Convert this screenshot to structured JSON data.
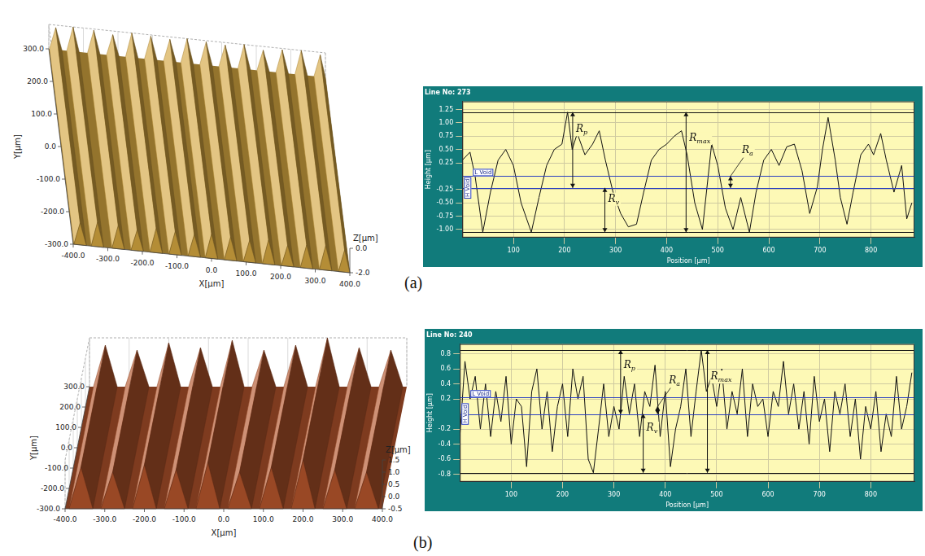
{
  "panel_labels": [
    "(a)",
    "(b)"
  ],
  "chart_data": [
    {
      "type": "surface",
      "color": "#d4a640",
      "x_label": "X[µm]",
      "y_label": "Y[µm]",
      "z_label": "Z[µm]",
      "xlim": [
        -400,
        400
      ],
      "xticks": [
        {
          "value": -400,
          "label": "-400.0"
        },
        {
          "value": -300,
          "label": "-300.0"
        },
        {
          "value": -200,
          "label": "-200.0"
        },
        {
          "value": -100,
          "label": "-100.0"
        },
        {
          "value": 0,
          "label": "0.0"
        },
        {
          "value": 100,
          "label": "100.0"
        },
        {
          "value": 200,
          "label": "200.0"
        },
        {
          "value": 300,
          "label": "300.0"
        },
        {
          "value": 400,
          "label": "400.0"
        }
      ],
      "ylim": [
        -300,
        300
      ],
      "yticks": [
        {
          "value": -300,
          "label": "-300.0"
        },
        {
          "value": -200,
          "label": "-200.0"
        },
        {
          "value": -100,
          "label": "-100.0"
        },
        {
          "value": 0,
          "label": "0.0"
        },
        {
          "value": 100,
          "label": "100.0"
        },
        {
          "value": 200,
          "label": "200.0"
        },
        {
          "value": 300,
          "label": "300.0"
        }
      ],
      "zlim": [
        -2,
        0
      ],
      "zticks": [
        {
          "value": -2,
          "label": "-2.0"
        },
        {
          "value": 0,
          "label": "0.0"
        }
      ],
      "ridges": {
        "x": [
          -380,
          -330,
          -270,
          -215,
          -160,
          -105,
          -50,
          0,
          55,
          110,
          165,
          220,
          275,
          330,
          385
        ],
        "z": [
          -0.2,
          0,
          -0.1,
          -0.3,
          0,
          -0.1,
          -0.2,
          0,
          -0.1,
          -0.2,
          0,
          -0.3,
          -0.1,
          0,
          -0.2
        ]
      }
    },
    {
      "type": "line",
      "title": "Line No: 273",
      "x_label": "Position [µm]",
      "y_label": "Height [µm]",
      "color": "#111111",
      "grid": true,
      "x": [
        0,
        15,
        25,
        40,
        55,
        70,
        85,
        100,
        115,
        135,
        150,
        165,
        180,
        195,
        206,
        215,
        225,
        240,
        255,
        268,
        280,
        295,
        310,
        325,
        341,
        355,
        370,
        385,
        400,
        415,
        429,
        440,
        455,
        470,
        488,
        500,
        515,
        530,
        545,
        562,
        575,
        590,
        605,
        620,
        635,
        650,
        665,
        680,
        695,
        705,
        716,
        730,
        740,
        753,
        765,
        780,
        795,
        805,
        819,
        830,
        845,
        860,
        870,
        880
      ],
      "values": [
        0.3,
        0.45,
        0.0,
        -1.05,
        -0.3,
        0.3,
        0.5,
        0.2,
        -0.5,
        -1.05,
        -0.4,
        0.2,
        0.5,
        0.6,
        1.2,
        0.5,
        0.8,
        0.4,
        0.6,
        0.85,
        0.3,
        -0.3,
        -0.7,
        -0.95,
        -0.9,
        -0.3,
        0.3,
        0.5,
        0.6,
        0.75,
        0.85,
        0.4,
        -0.5,
        -1.0,
        0.6,
        0.2,
        -0.6,
        -1.0,
        -0.4,
        -1.05,
        -0.3,
        0.3,
        0.5,
        0.2,
        0.55,
        0.6,
        0.1,
        -0.7,
        -0.2,
        0.5,
        1.1,
        0.3,
        -0.4,
        -0.9,
        -0.3,
        0.4,
        0.6,
        0.4,
        0.8,
        0.3,
        -0.3,
        0.2,
        -0.8,
        -0.5
      ],
      "xlim": [
        0,
        885
      ],
      "xticks": [
        100,
        200,
        300,
        400,
        500,
        600,
        700,
        800
      ],
      "ylim": [
        -1.15,
        1.4
      ],
      "yticks": [
        {
          "value": -1,
          "label": "-1.00"
        },
        -0.75,
        {
          "value": -0.5,
          "label": "-0.50"
        },
        -0.25,
        0.25,
        {
          "value": 0.5,
          "label": "0.50"
        },
        0.75,
        {
          "value": 1,
          "label": "1.00"
        },
        1.25
      ],
      "reference_lines": [
        1.2,
        -1.05
      ],
      "level_lines": [
        {
          "label": "L Void",
          "value": 0.0
        },
        {
          "label": "H Void",
          "value": -0.22
        }
      ],
      "annotations": [
        {
          "text": "Rp",
          "x": 216,
          "from": 1.2,
          "to": -0.22
        },
        {
          "text": "Rv",
          "x": 279,
          "from": -0.22,
          "to": -1.05
        },
        {
          "text": "Rmax",
          "x": 438,
          "from": 1.2,
          "to": -1.05
        },
        {
          "text": "Ra",
          "x": 525,
          "from": 0.0,
          "to": -0.22
        }
      ]
    },
    {
      "type": "surface",
      "color": "#b4552c",
      "x_label": "X[µm]",
      "y_label": "Y[µm]",
      "z_label": "Z[µm]",
      "xlim": [
        -400,
        400
      ],
      "xticks": [
        {
          "value": -400,
          "label": "-400.0"
        },
        {
          "value": -300,
          "label": "-300.0"
        },
        {
          "value": -200,
          "label": "-200.0"
        },
        {
          "value": -100,
          "label": "-100.0"
        },
        {
          "value": 0,
          "label": "0.0"
        },
        {
          "value": 100,
          "label": "100.0"
        },
        {
          "value": 200,
          "label": "200.0"
        },
        {
          "value": 300,
          "label": "300.0"
        },
        {
          "value": 400,
          "label": "400.0"
        }
      ],
      "ylim": [
        -300,
        300
      ],
      "yticks": [
        {
          "value": -300,
          "label": "-300.0"
        },
        {
          "value": -200,
          "label": "-200.0"
        },
        {
          "value": -100,
          "label": "-100.0"
        },
        {
          "value": 0,
          "label": "0.0"
        },
        {
          "value": 100,
          "label": "100.0"
        },
        {
          "value": 200,
          "label": "200.0"
        },
        {
          "value": 300,
          "label": "300.0"
        }
      ],
      "zlim": [
        -0.5,
        1.5
      ],
      "zticks": [
        {
          "value": -0.5,
          "label": "-0.5"
        },
        {
          "value": 0,
          "label": "0.0"
        },
        {
          "value": 0.5,
          "label": "0.5"
        },
        {
          "value": 1,
          "label": "1.0"
        },
        {
          "value": 1.5,
          "label": "1.5"
        }
      ],
      "ridges": {
        "x": [
          -360,
          -280,
          -200,
          -120,
          -40,
          40,
          120,
          200,
          280,
          360
        ],
        "z": [
          1.2,
          1.0,
          1.3,
          1.1,
          1.4,
          1.0,
          1.2,
          1.5,
          1.1,
          1.0
        ]
      }
    },
    {
      "type": "line",
      "title": "Line No: 240",
      "x_label": "Position [µm]",
      "y_label": "Height [µm]",
      "color": "#111111",
      "grid": true,
      "x": [
        0,
        10,
        20,
        30,
        40,
        50,
        60,
        70,
        80,
        90,
        100,
        110,
        120,
        130,
        140,
        150,
        160,
        170,
        180,
        190,
        200,
        210,
        220,
        230,
        240,
        250,
        260,
        270,
        280,
        290,
        300,
        310,
        320,
        330,
        340,
        350,
        360,
        370,
        380,
        390,
        400,
        410,
        420,
        430,
        440,
        450,
        460,
        470,
        480,
        490,
        500,
        510,
        520,
        530,
        540,
        550,
        560,
        570,
        580,
        590,
        600,
        610,
        620,
        630,
        640,
        650,
        660,
        670,
        680,
        690,
        700,
        710,
        720,
        730,
        740,
        750,
        760,
        770,
        780,
        790,
        800,
        810,
        820,
        830,
        840,
        850,
        860,
        870,
        880
      ],
      "values": [
        -0.3,
        0.7,
        0.2,
        0.5,
        -0.2,
        0.4,
        -0.3,
        0.3,
        -0.1,
        0.5,
        -0.4,
        0.2,
        0.1,
        -0.7,
        0.3,
        0.6,
        -0.2,
        0.3,
        -0.5,
        0.1,
        0.4,
        -0.3,
        0.6,
        0.2,
        0.5,
        -0.6,
        -0.78,
        -0.2,
        0.4,
        -0.3,
        0.1,
        -0.2,
        0.5,
        0.0,
        0.4,
        -0.3,
        0.3,
        0.1,
        0.65,
        -0.3,
        0.3,
        -0.7,
        -0.2,
        0.1,
        0.6,
        -0.3,
        0.3,
        0.85,
        0.3,
        0.5,
        0.1,
        0.6,
        -0.2,
        0.3,
        0.0,
        0.6,
        -0.3,
        0.4,
        0.1,
        0.2,
        -0.3,
        0.3,
        0.1,
        0.7,
        0.0,
        0.4,
        -0.2,
        0.3,
        -0.4,
        0.5,
        -0.1,
        0.2,
        -0.5,
        0.3,
        0.0,
        0.4,
        -0.3,
        0.2,
        -0.6,
        0.1,
        -0.2,
        0.3,
        -0.5,
        0.0,
        -0.3,
        0.5,
        -0.2,
        0.1,
        0.55
      ],
      "xlim": [
        0,
        885
      ],
      "xticks": [
        100,
        200,
        300,
        400,
        500,
        600,
        700,
        800
      ],
      "ylim": [
        -0.9,
        0.93
      ],
      "yticks": [
        -0.8,
        -0.6,
        -0.4,
        -0.2,
        0.2,
        0.4,
        0.6,
        0.8
      ],
      "reference_lines": [
        0.85,
        -0.78
      ],
      "level_lines": [
        {
          "label": "L Void",
          "value": 0.22
        },
        {
          "label": "H Void",
          "value": 0.0
        }
      ],
      "annotations": [
        {
          "text": "Rp",
          "x": 313,
          "from": 0.85,
          "to": 0.0
        },
        {
          "text": "Rv",
          "x": 357,
          "from": 0.0,
          "to": -0.78
        },
        {
          "text": "Ra",
          "x": 385,
          "from": 0.1,
          "to": 0.0
        },
        {
          "text": "Rmax",
          "x": 482,
          "from": 0.85,
          "to": -0.78
        }
      ]
    }
  ]
}
